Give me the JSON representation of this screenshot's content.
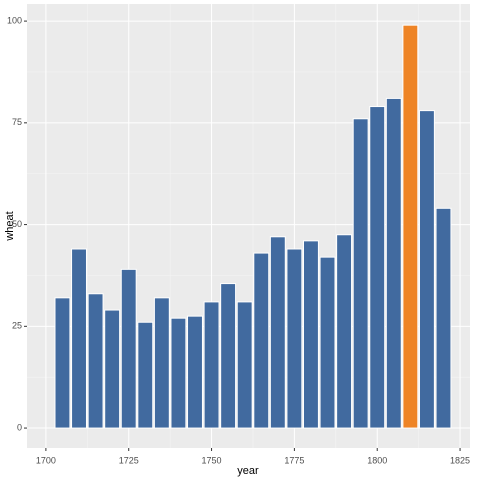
{
  "chart_data": {
    "type": "bar",
    "x_label": "year",
    "y_label": "wheat",
    "x": [
      1705,
      1710,
      1715,
      1720,
      1725,
      1730,
      1735,
      1740,
      1745,
      1750,
      1755,
      1760,
      1765,
      1770,
      1775,
      1780,
      1785,
      1790,
      1795,
      1800,
      1805,
      1810,
      1815,
      1820
    ],
    "values": [
      32,
      44,
      33,
      29,
      39,
      26,
      32,
      27,
      27.5,
      31,
      35.5,
      31,
      43,
      47,
      44,
      46,
      42,
      47.5,
      76,
      79,
      81,
      99,
      78,
      54
    ],
    "colors": [
      "#416a9f",
      "#416a9f",
      "#416a9f",
      "#416a9f",
      "#416a9f",
      "#416a9f",
      "#416a9f",
      "#416a9f",
      "#416a9f",
      "#416a9f",
      "#416a9f",
      "#416a9f",
      "#416a9f",
      "#416a9f",
      "#416a9f",
      "#416a9f",
      "#416a9f",
      "#416a9f",
      "#416a9f",
      "#416a9f",
      "#416a9f",
      "#ee8426",
      "#416a9f",
      "#416a9f"
    ],
    "xlim": [
      1694.3,
      1828
    ],
    "ylim": [
      -4.9,
      104.2
    ],
    "xticks": [
      1700,
      1725,
      1750,
      1775,
      1800,
      1825
    ],
    "yticks": [
      0,
      25,
      50,
      75,
      100
    ],
    "grid": true
  }
}
